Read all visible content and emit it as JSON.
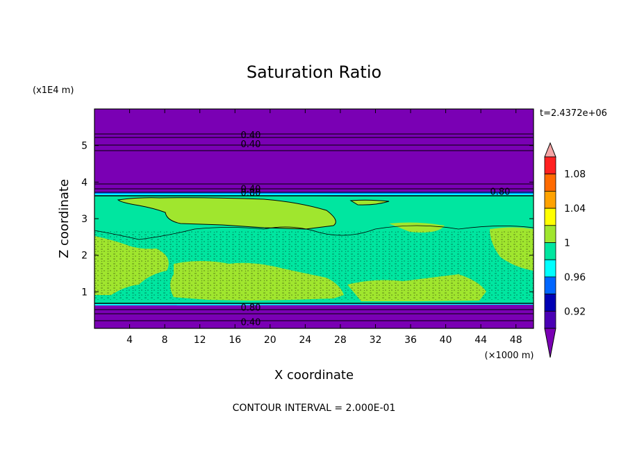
{
  "chart_data": {
    "type": "heatmap",
    "title": "Saturation Ratio",
    "xlabel": "X coordinate",
    "ylabel": "Z coordinate",
    "x_unit_label": "(×1000 m)",
    "y_unit_label": "(x1E4 m)",
    "time_label": "t=2.4372e+06",
    "footer": "CONTOUR INTERVAL = 2.000E-01",
    "xlim": [
      0,
      50
    ],
    "ylim": [
      0,
      6
    ],
    "x_ticks": [
      "4",
      "8",
      "12",
      "16",
      "20",
      "24",
      "28",
      "32",
      "36",
      "40",
      "44",
      "48"
    ],
    "y_ticks": [
      "1",
      "2",
      "3",
      "4",
      "5"
    ],
    "colorbar_labels": [
      "1.08",
      "1.04",
      "1",
      "0.96",
      "0.92"
    ],
    "colorbar_colors": [
      "#f4a5a5",
      "#ff2020",
      "#ff6a00",
      "#ffa200",
      "#ffff00",
      "#a0e62e",
      "#00e6a0",
      "#00ffff",
      "#0066ff",
      "#0000b4",
      "#4a00b4",
      "#7a00b4"
    ],
    "contour_labels": [
      {
        "text": "0.40",
        "x": 17.8,
        "z": 5.3
      },
      {
        "text": "0.40",
        "x": 17.8,
        "z": 5.05
      },
      {
        "text": "0.40",
        "x": 17.8,
        "z": 3.83
      },
      {
        "text": "0.80",
        "x": 17.8,
        "z": 3.72
      },
      {
        "text": "0.80",
        "x": 46.2,
        "z": 3.75
      },
      {
        "text": "0.80",
        "x": 17.8,
        "z": 0.58
      },
      {
        "text": "0.40",
        "x": 17.8,
        "z": 0.18
      }
    ],
    "regions": [
      {
        "name": "upper-dry-layer",
        "z": [
          3.7,
          6.0
        ],
        "value": "<0.92",
        "color": "#7a00b4"
      },
      {
        "name": "saturated-layer",
        "z": [
          0.65,
          3.65
        ],
        "value": "0.96-1",
        "color": "#00e6a0"
      },
      {
        "name": "supersaturated-patches",
        "z": [
          0.65,
          3.6
        ],
        "value": "1-1.04",
        "color": "#a0e62e"
      },
      {
        "name": "lower-dry-layer",
        "z": [
          0.0,
          0.62
        ],
        "value": "<0.92",
        "color": "#7a00b4"
      }
    ],
    "grid": false
  }
}
